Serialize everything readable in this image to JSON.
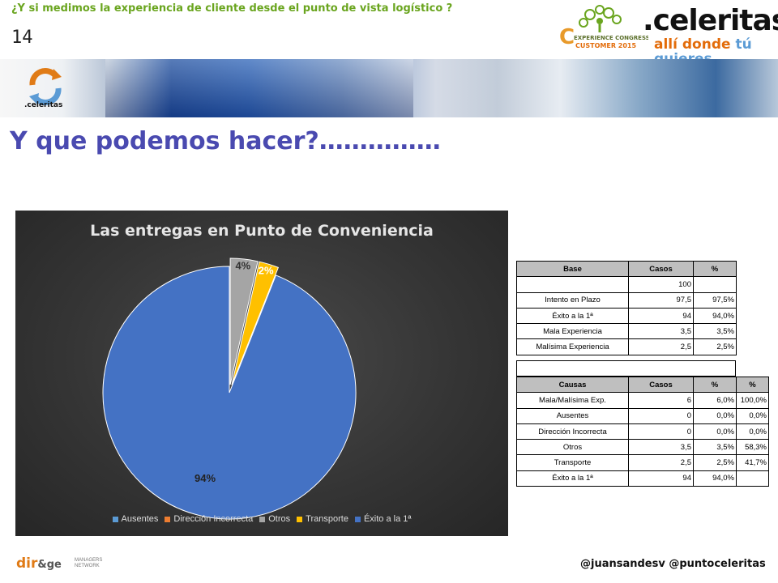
{
  "header": {
    "question": "¿Y si medimos la experiencia de cliente desde el punto de vista logístico ?",
    "slide_number": "14",
    "congress_line1": "EXPERIENCE CONGRESS",
    "congress_line2": "CUSTOMER 2015",
    "brand_name": ".celeritas",
    "brand_sub_1": "allí donde",
    "brand_sub_2": "tú quieres"
  },
  "banner": {
    "logo_text": ".celeritas"
  },
  "page_title": "Y que podemos hacer?……………",
  "chart_data": {
    "type": "pie",
    "title": "Las entregas en Punto de Conveniencia",
    "categories": [
      "Ausentes",
      "Dirección Incorrecta",
      "Otros",
      "Transporte",
      "Éxito a la 1ª"
    ],
    "values": [
      0,
      0,
      3.5,
      2.5,
      94
    ],
    "labels": [
      "",
      "",
      "4%",
      "2%",
      "94%"
    ],
    "colors": [
      "#5b9bd5",
      "#ed7d31",
      "#a5a5a5",
      "#ffc000",
      "#4472c4"
    ],
    "legend_position": "bottom",
    "background": "#333333"
  },
  "table_base": {
    "headers": [
      "Base",
      "Casos",
      "%"
    ],
    "rows": [
      [
        "",
        "100",
        ""
      ],
      [
        "Intento en Plazo",
        "97,5",
        "97,5%"
      ],
      [
        "Éxito a la 1ª",
        "94",
        "94,0%"
      ],
      [
        "Mala Experiencia",
        "3,5",
        "3,5%"
      ],
      [
        "Malísima Experiencia",
        "2,5",
        "2,5%"
      ]
    ]
  },
  "table_causas": {
    "headers": [
      "Causas",
      "Casos",
      "%",
      "%"
    ],
    "rows": [
      [
        "Mala/Malísima  Exp.",
        "6",
        "6,0%",
        "100,0%"
      ],
      [
        "Ausentes",
        "0",
        "0,0%",
        "0,0%"
      ],
      [
        "Dirección Incorrecta",
        "0",
        "0,0%",
        "0,0%"
      ],
      [
        "Otros",
        "3,5",
        "3,5%",
        "58,3%"
      ],
      [
        "Transporte",
        "2,5",
        "2,5%",
        "41,7%"
      ],
      [
        "Éxito a la 1ª",
        "94",
        "94,0%",
        ""
      ]
    ]
  },
  "footer": {
    "logo_main": "dir",
    "logo_amp": "&ge",
    "logo_sub1": "MANAGERS",
    "logo_sub2": "NETWORK",
    "handles": "@juansandesv  @puntoceleritas"
  }
}
